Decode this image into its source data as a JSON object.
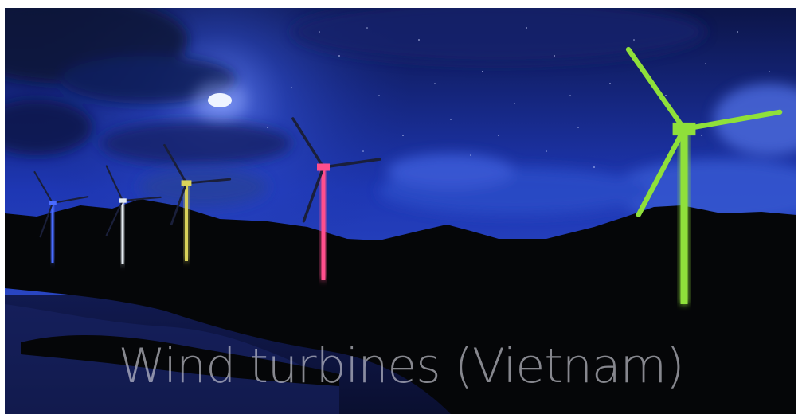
{
  "caption": "Wind turbines (Vietnam)",
  "scene": {
    "sky_colors": [
      "#0b1450",
      "#1f3fd0",
      "#3151c8",
      "#1b2a8a"
    ],
    "moon_color": "#e8f1ff",
    "hills_color": "#050608",
    "water_color": "#0f1a55"
  },
  "turbines": [
    {
      "name": "blue-turbine",
      "color": "#4a6cff"
    },
    {
      "name": "white-turbine",
      "color": "#e6ecf2"
    },
    {
      "name": "yellow-turbine",
      "color": "#d9d25a"
    },
    {
      "name": "pink-turbine",
      "color": "#ff4f8d"
    },
    {
      "name": "green-turbine",
      "color": "#8fe03a"
    }
  ]
}
